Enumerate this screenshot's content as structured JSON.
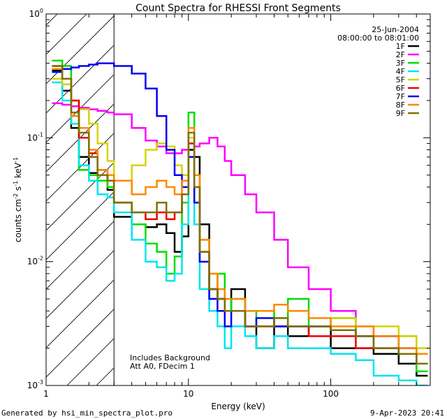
{
  "chart_data": {
    "type": "line",
    "title": "Count Spectra for RHESSI Front Segments",
    "xlabel": "Energy (keV)",
    "ylabel_parts": [
      "counts cm",
      "-2",
      " s",
      "-1",
      " keV",
      "-1"
    ],
    "xscale": "log",
    "yscale": "log",
    "xlim": [
      1,
      500
    ],
    "ylim": [
      0.001,
      1
    ],
    "x_ticks": [
      {
        "value": 1,
        "label": "1"
      },
      {
        "value": 10,
        "label": "10"
      },
      {
        "value": 100,
        "label": "100"
      }
    ],
    "y_ticks": [
      {
        "value": 1,
        "base": "10",
        "exp": "0"
      },
      {
        "value": 0.1,
        "base": "10",
        "exp": "-1"
      },
      {
        "value": 0.01,
        "base": "10",
        "exp": "-2"
      },
      {
        "value": 0.001,
        "base": "10",
        "exp": "-3"
      }
    ],
    "date": "25-Jun-2004",
    "time_range": "08:00:00 to 08:01:00",
    "hatched_below_keV": 3,
    "annotations": [
      "Includes Background",
      "Att A0, FDecim 1"
    ],
    "series": [
      {
        "name": "1F",
        "color": "#000000",
        "x": [
          1.1,
          1.3,
          1.5,
          1.7,
          2,
          2.3,
          2.7,
          3,
          4,
          5,
          6,
          7,
          8,
          9,
          10,
          11,
          12,
          14,
          16,
          18,
          20,
          25,
          30,
          40,
          50,
          70,
          100,
          150,
          200,
          300,
          400
        ],
        "y": [
          0.35,
          0.24,
          0.12,
          0.07,
          0.052,
          0.05,
          0.038,
          0.023,
          0.02,
          0.019,
          0.02,
          0.017,
          0.012,
          0.016,
          0.08,
          0.07,
          0.02,
          0.006,
          0.005,
          0.004,
          0.006,
          0.003,
          0.002,
          0.003,
          0.0025,
          0.003,
          0.002,
          0.002,
          0.0018,
          0.0015,
          0.0012
        ]
      },
      {
        "name": "2F",
        "color": "#ff00ff",
        "x": [
          1.1,
          1.3,
          1.5,
          1.7,
          2,
          2.3,
          2.7,
          3,
          4,
          5,
          6,
          7,
          8,
          9,
          10,
          11,
          12,
          14,
          16,
          18,
          20,
          25,
          30,
          40,
          50,
          70,
          100,
          150,
          200,
          300,
          400
        ],
        "y": [
          0.19,
          0.185,
          0.18,
          0.175,
          0.17,
          0.165,
          0.16,
          0.155,
          0.12,
          0.095,
          0.085,
          0.075,
          0.075,
          0.08,
          0.09,
          0.085,
          0.09,
          0.1,
          0.085,
          0.065,
          0.05,
          0.035,
          0.025,
          0.015,
          0.009,
          0.006,
          0.004,
          0.003,
          0.0025,
          0.002,
          0.0015
        ]
      },
      {
        "name": "3F",
        "color": "#00dd00",
        "x": [
          1.1,
          1.3,
          1.5,
          1.7,
          2,
          2.3,
          2.7,
          3,
          4,
          5,
          6,
          7,
          8,
          9,
          10,
          11,
          12,
          14,
          16,
          18,
          20,
          25,
          30,
          40,
          50,
          70,
          100,
          150,
          200,
          300,
          400
        ],
        "y": [
          0.42,
          0.38,
          0.2,
          0.055,
          0.05,
          0.045,
          0.04,
          0.03,
          0.02,
          0.014,
          0.012,
          0.008,
          0.011,
          0.03,
          0.16,
          0.03,
          0.01,
          0.005,
          0.008,
          0.004,
          0.005,
          0.003,
          0.004,
          0.003,
          0.005,
          0.003,
          0.0035,
          0.0025,
          0.002,
          0.0025,
          0.0013
        ]
      },
      {
        "name": "4F",
        "color": "#00e5ee",
        "x": [
          1.1,
          1.3,
          1.5,
          1.7,
          2,
          2.3,
          2.7,
          3,
          4,
          5,
          6,
          7,
          8,
          9,
          10,
          11,
          12,
          14,
          16,
          18,
          20,
          25,
          30,
          40,
          50,
          70,
          100,
          150,
          200,
          300,
          400
        ],
        "y": [
          0.28,
          0.2,
          0.13,
          0.06,
          0.045,
          0.035,
          0.033,
          0.025,
          0.015,
          0.01,
          0.009,
          0.007,
          0.008,
          0.02,
          0.12,
          0.02,
          0.006,
          0.004,
          0.003,
          0.002,
          0.003,
          0.0025,
          0.002,
          0.0025,
          0.002,
          0.002,
          0.0018,
          0.0016,
          0.0012,
          0.0011,
          0.001
        ]
      },
      {
        "name": "5F",
        "color": "#d4d400",
        "x": [
          1.1,
          1.3,
          1.5,
          1.7,
          2,
          2.3,
          2.7,
          3,
          4,
          5,
          6,
          7,
          8,
          9,
          10,
          11,
          12,
          14,
          16,
          18,
          20,
          25,
          30,
          40,
          50,
          70,
          100,
          150,
          200,
          300,
          400
        ],
        "y": [
          0.3,
          0.27,
          0.2,
          0.17,
          0.13,
          0.09,
          0.065,
          0.045,
          0.06,
          0.08,
          0.09,
          0.085,
          0.06,
          0.05,
          0.1,
          0.05,
          0.015,
          0.008,
          0.005,
          0.004,
          0.004,
          0.003,
          0.003,
          0.0035,
          0.003,
          0.003,
          0.0035,
          0.003,
          0.003,
          0.0025,
          0.002
        ]
      },
      {
        "name": "6F",
        "color": "#ee0000",
        "x": [
          1.1,
          1.3,
          1.5,
          1.7,
          2,
          2.3,
          2.7,
          3,
          4,
          5,
          6,
          7,
          8,
          9,
          10,
          11,
          12,
          14,
          16,
          18,
          20,
          25,
          30,
          40,
          50,
          70,
          100,
          150,
          200,
          300,
          400
        ],
        "y": [
          0.38,
          0.3,
          0.2,
          0.1,
          0.075,
          0.055,
          0.045,
          0.03,
          0.025,
          0.022,
          0.025,
          0.022,
          0.025,
          0.035,
          0.09,
          0.04,
          0.012,
          0.006,
          0.005,
          0.004,
          0.004,
          0.003,
          0.003,
          0.003,
          0.003,
          0.0025,
          0.0025,
          0.002,
          0.002,
          0.0018,
          0.0015
        ]
      },
      {
        "name": "7F",
        "color": "#0000ee",
        "x": [
          1.1,
          1.3,
          1.5,
          1.7,
          2,
          2.3,
          2.7,
          3,
          4,
          5,
          6,
          7,
          8,
          9,
          10,
          11,
          12,
          14,
          16,
          18,
          20,
          25,
          30,
          40,
          50,
          70,
          100,
          150,
          200,
          300,
          400
        ],
        "y": [
          0.34,
          0.36,
          0.37,
          0.38,
          0.39,
          0.4,
          0.4,
          0.38,
          0.33,
          0.25,
          0.15,
          0.08,
          0.05,
          0.04,
          0.07,
          0.03,
          0.01,
          0.005,
          0.004,
          0.003,
          0.004,
          0.003,
          0.0035,
          0.003,
          0.003,
          0.003,
          0.0028,
          0.0025,
          0.0025,
          0.002,
          0.0018
        ]
      },
      {
        "name": "8F",
        "color": "#ff8800",
        "x": [
          1.1,
          1.3,
          1.5,
          1.7,
          2,
          2.3,
          2.7,
          3,
          4,
          5,
          6,
          7,
          8,
          9,
          10,
          11,
          12,
          14,
          16,
          18,
          20,
          25,
          30,
          40,
          50,
          70,
          100,
          150,
          200,
          300,
          400
        ],
        "y": [
          0.36,
          0.3,
          0.15,
          0.12,
          0.08,
          0.055,
          0.05,
          0.045,
          0.035,
          0.04,
          0.045,
          0.04,
          0.035,
          0.045,
          0.12,
          0.05,
          0.015,
          0.008,
          0.006,
          0.005,
          0.005,
          0.004,
          0.004,
          0.0045,
          0.004,
          0.0035,
          0.003,
          0.003,
          0.0025,
          0.002,
          0.0018
        ]
      },
      {
        "name": "9F",
        "color": "#807000",
        "x": [
          1.1,
          1.3,
          1.5,
          1.7,
          2,
          2.3,
          2.7,
          3,
          4,
          5,
          6,
          7,
          8,
          9,
          10,
          11,
          12,
          14,
          16,
          18,
          20,
          25,
          30,
          40,
          50,
          70,
          100,
          150,
          200,
          300,
          400
        ],
        "y": [
          0.38,
          0.3,
          0.16,
          0.11,
          0.07,
          0.05,
          0.045,
          0.03,
          0.025,
          0.025,
          0.03,
          0.025,
          0.025,
          0.035,
          0.11,
          0.04,
          0.012,
          0.006,
          0.005,
          0.004,
          0.004,
          0.003,
          0.003,
          0.0035,
          0.003,
          0.003,
          0.0028,
          0.0025,
          0.002,
          0.0018,
          0.0015
        ]
      }
    ]
  },
  "footer": {
    "left": "Generated by hsi_min_spectra_plot.pro",
    "right": "9-Apr-2023 20:41"
  }
}
